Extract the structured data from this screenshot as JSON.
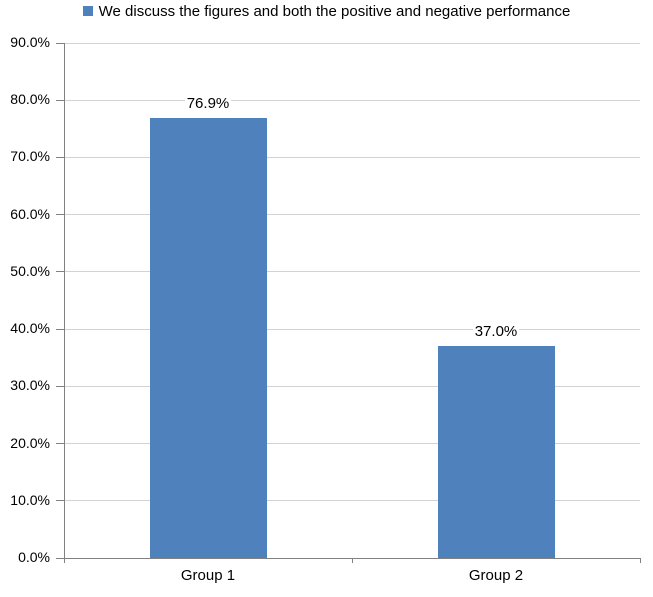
{
  "chart_data": {
    "type": "bar",
    "title": "",
    "legend_position": "top",
    "legend": [
      {
        "label": "We discuss the figures and both the positive and negative performance",
        "color": "#4f81bd"
      }
    ],
    "categories": [
      "Group 1",
      "Group 2"
    ],
    "series": [
      {
        "name": "We discuss the figures and both the positive and negative performance",
        "values": [
          76.9,
          37.0
        ],
        "color": "#4f81bd"
      }
    ],
    "data_labels": [
      "76.9%",
      "37.0%"
    ],
    "y_axis": {
      "min": 0,
      "max": 90,
      "tick_step": 10,
      "tick_labels": [
        "0.0%",
        "10.0%",
        "20.0%",
        "30.0%",
        "40.0%",
        "50.0%",
        "60.0%",
        "70.0%",
        "80.0%",
        "90.0%"
      ]
    },
    "x_axis": {
      "label": ""
    },
    "grid": true,
    "colors": {
      "bar": "#4f81bd",
      "axis": "#808080",
      "gridline": "#d3d3d3",
      "text": "#000000",
      "background": "#ffffff"
    }
  }
}
